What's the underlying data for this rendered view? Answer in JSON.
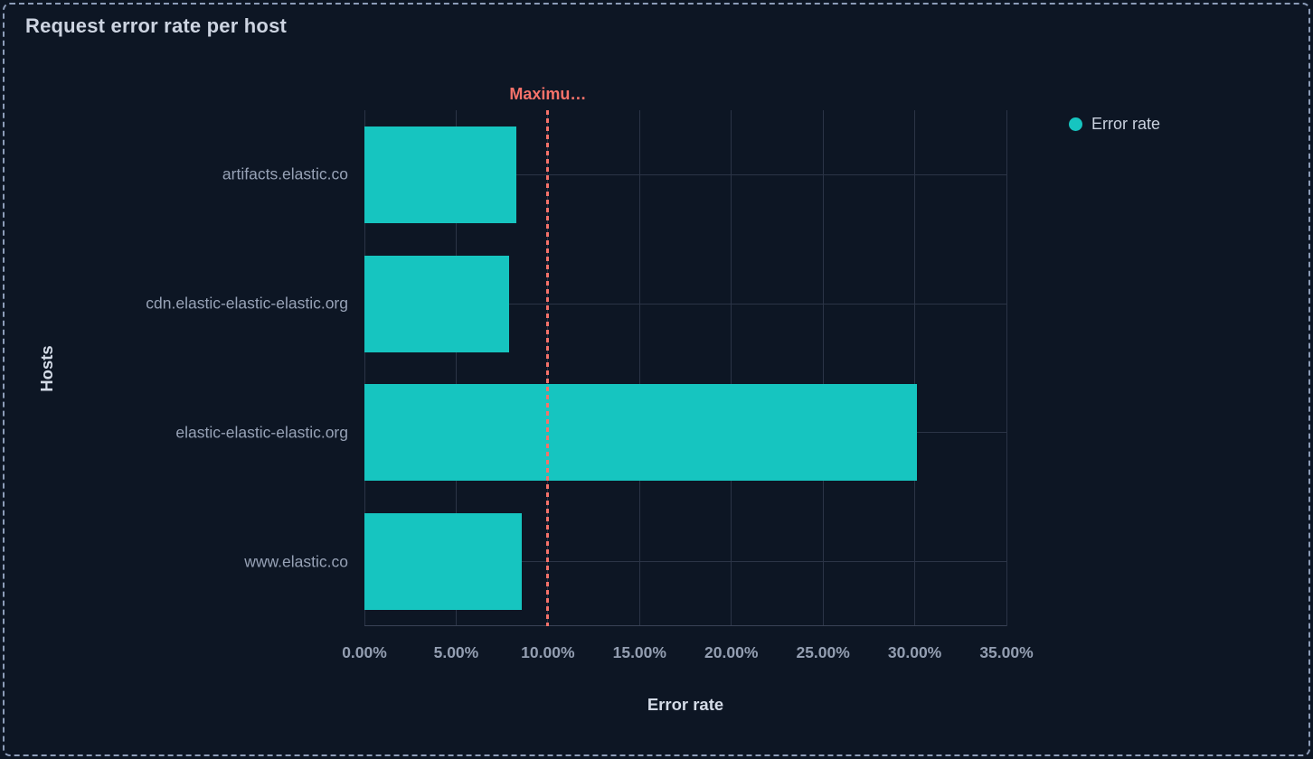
{
  "panel": {
    "title": "Request error rate per host"
  },
  "legend": {
    "position": "top-right",
    "items": [
      {
        "label": "Error rate",
        "color": "#16C5C0"
      }
    ]
  },
  "chart_data": {
    "type": "bar",
    "orientation": "horizontal",
    "title": "Request error rate per host",
    "categories": [
      "artifacts.elastic.co",
      "cdn.elastic-elastic-elastic.org",
      "elastic-elastic-elastic.org",
      "www.elastic.co"
    ],
    "series": [
      {
        "name": "Error rate",
        "values": [
          8.3,
          7.9,
          30.1,
          8.6
        ],
        "unit": "%",
        "color": "#16C5C0"
      }
    ],
    "xlabel": "Error rate",
    "ylabel": "Hosts",
    "xlim": [
      0,
      35
    ],
    "x_tick_values": [
      0,
      5,
      10,
      15,
      20,
      25,
      30,
      35
    ],
    "x_tick_labels": [
      "0.00%",
      "5.00%",
      "10.00%",
      "15.00%",
      "20.00%",
      "25.00%",
      "30.00%",
      "35.00%"
    ],
    "grid": true,
    "legend_position": "right",
    "threshold": {
      "value": 10,
      "label": "Maximu…",
      "color": "#F6726A",
      "style": "dashed"
    }
  },
  "colors": {
    "background": "#0D1624",
    "panel_border": "#8C9CB8",
    "bar": "#16C5C0",
    "threshold": "#F6726A",
    "gridline": "#2B3446",
    "title_text": "#CDD4E1",
    "axis_title_text": "#D4DBE7",
    "tick_text": "#939EB1",
    "category_text": "#97A2B6",
    "legend_text": "#C9D1DE"
  }
}
